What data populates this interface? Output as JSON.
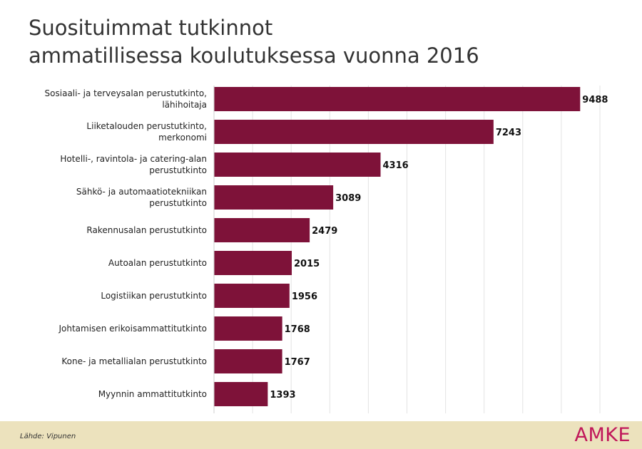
{
  "chart_data": {
    "type": "bar",
    "orientation": "horizontal",
    "title_lines": [
      "Suosituimmat tutkinnot",
      "ammatillisessa koulutuksessa vuonna 2016"
    ],
    "categories": [
      [
        "Sosiaali- ja terveysalan perustutkinto,",
        "lähihoitaja"
      ],
      [
        "Liiketalouden perustutkinto,",
        "merkonomi"
      ],
      [
        "Hotelli-, ravintola- ja catering-alan",
        "perustutkinto"
      ],
      [
        "Sähkö- ja automaatiotekniikan",
        "perustutkinto"
      ],
      [
        "Rakennusalan perustutkinto"
      ],
      [
        "Autoalan perustutkinto"
      ],
      [
        "Logistiikan perustutkinto"
      ],
      [
        "Johtamisen erikoisammattitutkinto"
      ],
      [
        "Kone- ja metallialan perustutkinto"
      ],
      [
        "Myynnin ammattitutkinto"
      ]
    ],
    "values": [
      9488,
      7243,
      4316,
      3089,
      2479,
      2015,
      1956,
      1768,
      1767,
      1393
    ],
    "xlim": [
      0,
      10000
    ],
    "grid": true,
    "bar_color": "#7e1239",
    "grid_color": "#e3e3e3"
  },
  "footer": {
    "source": "Lähde: Vipunen",
    "logo": "AMKE",
    "background": "#ece2bd",
    "logo_color": "#c0175a"
  }
}
